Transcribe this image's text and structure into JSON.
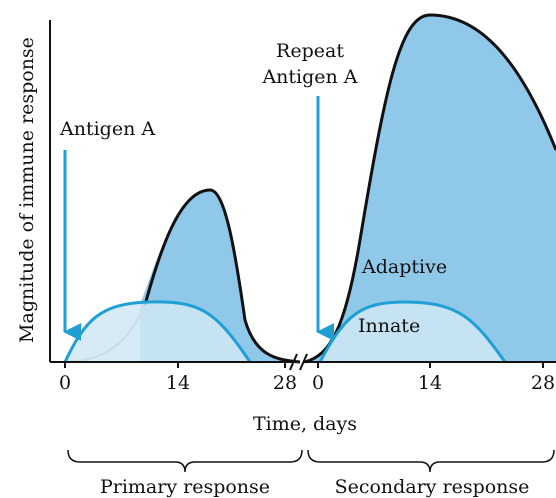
{
  "figure": {
    "y_axis_label": "Magnitude of immune response",
    "x_axis_label": "Time, days",
    "x_ticks": [
      "0",
      "14",
      "28",
      "0",
      "14",
      "28"
    ],
    "first_arrow_label": "Antigen A",
    "second_arrow_label": [
      "Repeat",
      "Antigen A"
    ],
    "curve_labels": {
      "adaptive": "Adaptive",
      "innate": "Innate"
    },
    "phases": [
      "Primary response",
      "Secondary response"
    ]
  }
}
